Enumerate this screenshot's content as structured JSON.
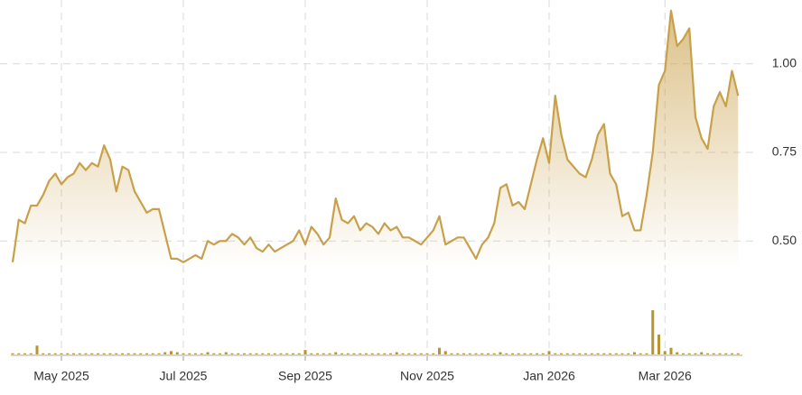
{
  "chart_data": {
    "type": "area",
    "categories": [
      null,
      null,
      null,
      null,
      null,
      null,
      null,
      null,
      "May 2025",
      null,
      null,
      null,
      null,
      null,
      null,
      null,
      null,
      null,
      null,
      null,
      null,
      null,
      null,
      null,
      null,
      null,
      null,
      null,
      "Jul 2025",
      null,
      null,
      null,
      null,
      null,
      null,
      null,
      null,
      null,
      null,
      null,
      null,
      null,
      null,
      null,
      null,
      null,
      null,
      null,
      "Sep 2025",
      null,
      null,
      null,
      null,
      null,
      null,
      null,
      null,
      null,
      null,
      null,
      null,
      null,
      null,
      null,
      null,
      null,
      null,
      null,
      "Nov 2025",
      null,
      null,
      null,
      null,
      null,
      null,
      null,
      null,
      null,
      null,
      null,
      null,
      null,
      null,
      null,
      null,
      null,
      null,
      null,
      "Jan 2026",
      null,
      null,
      null,
      null,
      null,
      null,
      null,
      null,
      null,
      null,
      null,
      null,
      null,
      null,
      null,
      null,
      null,
      null,
      "Mar 2026",
      null,
      null,
      null,
      null,
      null,
      null,
      null,
      null,
      null,
      null,
      null,
      null
    ],
    "series": [
      {
        "color": "#c9a04a",
        "values": [
          0.44,
          0.56,
          0.55,
          0.6,
          0.6,
          0.63,
          0.67,
          0.69,
          0.66,
          0.68,
          0.69,
          0.72,
          0.7,
          0.72,
          0.71,
          0.77,
          0.73,
          0.64,
          0.71,
          0.7,
          0.64,
          0.61,
          0.58,
          0.59,
          0.59,
          0.52,
          0.45,
          0.45,
          0.44,
          0.45,
          0.46,
          0.45,
          0.5,
          0.49,
          0.5,
          0.5,
          0.52,
          0.51,
          0.49,
          0.51,
          0.48,
          0.47,
          0.49,
          0.47,
          0.48,
          0.49,
          0.5,
          0.53,
          0.49,
          0.54,
          0.52,
          0.49,
          0.51,
          0.62,
          0.56,
          0.55,
          0.57,
          0.53,
          0.55,
          0.54,
          0.52,
          0.55,
          0.53,
          0.54,
          0.51,
          0.51,
          0.5,
          0.49,
          0.51,
          0.53,
          0.57,
          0.49,
          0.5,
          0.51,
          0.51,
          0.48,
          0.45,
          0.49,
          0.51,
          0.55,
          0.65,
          0.66,
          0.6,
          0.61,
          0.59,
          0.66,
          0.73,
          0.79,
          0.72,
          0.91,
          0.8,
          0.73,
          0.71,
          0.69,
          0.68,
          0.73,
          0.8,
          0.83,
          0.69,
          0.66,
          0.57,
          0.58,
          0.53,
          0.53,
          0.63,
          0.75,
          0.94,
          0.98,
          1.15,
          1.05,
          1.07,
          1.1,
          0.85,
          0.79,
          0.76,
          0.88,
          0.92,
          0.88,
          0.98,
          0.91
        ]
      },
      {
        "color": "#b8952e",
        "axis": "y2",
        "type": "bar",
        "values": [
          1,
          1,
          1,
          1,
          8,
          1,
          1,
          1,
          1,
          1,
          1,
          1,
          1,
          1,
          1,
          1,
          1,
          1,
          1,
          1,
          1,
          1,
          1,
          1,
          1,
          2,
          3,
          2,
          1,
          1,
          1,
          1,
          2,
          1,
          1,
          2,
          1,
          1,
          1,
          1,
          1,
          1,
          1,
          1,
          1,
          1,
          1,
          1,
          4,
          1,
          1,
          1,
          1,
          2,
          1,
          1,
          1,
          1,
          1,
          1,
          1,
          1,
          1,
          2,
          1,
          1,
          1,
          1,
          1,
          1,
          6,
          3,
          1,
          1,
          1,
          1,
          1,
          1,
          1,
          1,
          2,
          1,
          1,
          1,
          1,
          1,
          1,
          1,
          3,
          1,
          1,
          1,
          1,
          1,
          1,
          1,
          1,
          1,
          1,
          1,
          1,
          1,
          2,
          1,
          1,
          40,
          18,
          3,
          6,
          2,
          1,
          1,
          1,
          2,
          1,
          1,
          1,
          1,
          1,
          1
        ]
      }
    ],
    "ylim": [
      0.18,
      1.18
    ],
    "yticks": [
      {
        "value": 0.5,
        "label": "0.50"
      },
      {
        "value": 0.75,
        "label": "0.75"
      },
      {
        "value": 1,
        "label": "1.00"
      }
    ],
    "y2lim": [
      0,
      40
    ],
    "grid": true
  }
}
